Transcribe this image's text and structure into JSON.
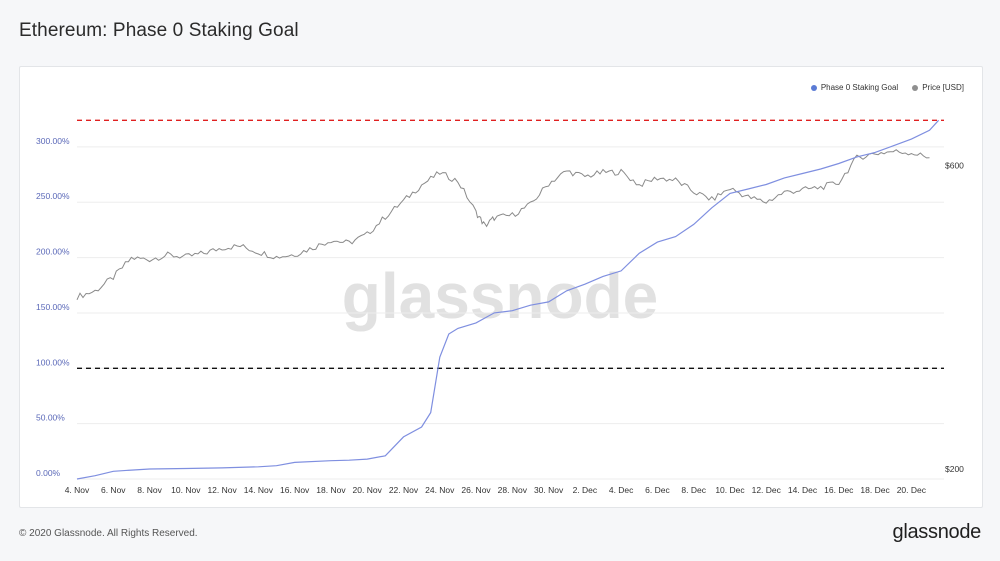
{
  "page": {
    "title": "Ethereum: Phase 0 Staking Goal",
    "copyright": "© 2020 Glassnode. All Rights Reserved.",
    "brand": "glassnode",
    "watermark": "glassnode"
  },
  "colors": {
    "staking": "#7f8fe0",
    "price": "#8a8a8a",
    "legend_staking": "#5b7bd5",
    "legend_price": "#8f8f8f",
    "target_line": "#e02020",
    "base_line": "#111111",
    "left_axis_text": "#5a68b8"
  },
  "chart_data": {
    "type": "line",
    "title": "Ethereum: Phase 0 Staking Goal",
    "x_ticks": [
      "4. Nov",
      "6. Nov",
      "8. Nov",
      "10. Nov",
      "12. Nov",
      "14. Nov",
      "16. Nov",
      "18. Nov",
      "20. Nov",
      "22. Nov",
      "24. Nov",
      "26. Nov",
      "28. Nov",
      "30. Nov",
      "2. Dec",
      "4. Dec",
      "6. Dec",
      "8. Dec",
      "10. Dec",
      "12. Dec",
      "14. Dec",
      "16. Dec",
      "18. Dec",
      "20. Dec"
    ],
    "x_range_days": [
      0,
      47.8
    ],
    "y_left": {
      "ticks": [
        "0.00%",
        "50.00%",
        "100.00%",
        "150.00%",
        "200.00%",
        "250.00%",
        "300.00%"
      ],
      "range": [
        0,
        355
      ]
    },
    "y_right": {
      "ticks": [
        "$200",
        "$600"
      ],
      "scale": "log",
      "range": [
        200,
        830
      ]
    },
    "legend": [
      "Phase 0 Staking Goal",
      "Price [USD]"
    ],
    "legend_position": "top-right",
    "grid": "horizontal",
    "reference_lines": [
      {
        "value": 100,
        "axis": "left",
        "color": "black",
        "style": "dashed"
      },
      {
        "value": 324,
        "axis": "left",
        "color": "red",
        "style": "dashed"
      }
    ],
    "series": [
      {
        "name": "Phase 0 Staking Goal",
        "axis": "left",
        "x": [
          "2020-11-04",
          "2020-11-05",
          "2020-11-06",
          "2020-11-07",
          "2020-11-08",
          "2020-11-10",
          "2020-11-12",
          "2020-11-14",
          "2020-11-15",
          "2020-11-16",
          "2020-11-18",
          "2020-11-19",
          "2020-11-20",
          "2020-11-21",
          "2020-11-22",
          "2020-11-23",
          "2020-11-23 12:00",
          "2020-11-24",
          "2020-11-24 12:00",
          "2020-11-25",
          "2020-11-26",
          "2020-11-27",
          "2020-11-28",
          "2020-11-29",
          "2020-11-30",
          "2020-12-01",
          "2020-12-02",
          "2020-12-03",
          "2020-12-04",
          "2020-12-05",
          "2020-12-06",
          "2020-12-07",
          "2020-12-08",
          "2020-12-09",
          "2020-12-10",
          "2020-12-11",
          "2020-12-12",
          "2020-12-13",
          "2020-12-14",
          "2020-12-15",
          "2020-12-16",
          "2020-12-17",
          "2020-12-18",
          "2020-12-19",
          "2020-12-20",
          "2020-12-21",
          "2020-12-21 12:00"
        ],
        "y": [
          0,
          3,
          7,
          8,
          9,
          9.5,
          10,
          11,
          12,
          15,
          16.5,
          17,
          18,
          21,
          38,
          47,
          60,
          110,
          131,
          136,
          141,
          150,
          152,
          157,
          160,
          170,
          176,
          183,
          188,
          204,
          214,
          219,
          230,
          245,
          258,
          262,
          266,
          272,
          276,
          280,
          285,
          291,
          295,
          301,
          307,
          315,
          324
        ]
      },
      {
        "name": "Price [USD]",
        "axis": "right",
        "x": [
          "2020-11-04",
          "2020-11-05",
          "2020-11-06",
          "2020-11-07",
          "2020-11-08",
          "2020-11-09",
          "2020-11-10",
          "2020-11-11",
          "2020-11-12",
          "2020-11-13",
          "2020-11-14",
          "2020-11-15",
          "2020-11-16",
          "2020-11-17",
          "2020-11-18",
          "2020-11-19",
          "2020-11-20",
          "2020-11-21",
          "2020-11-22",
          "2020-11-23",
          "2020-11-24",
          "2020-11-25",
          "2020-11-26",
          "2020-11-26 12:00",
          "2020-11-27",
          "2020-11-28",
          "2020-11-29",
          "2020-11-30",
          "2020-12-01",
          "2020-12-02",
          "2020-12-03",
          "2020-12-04",
          "2020-12-05",
          "2020-12-06",
          "2020-12-07",
          "2020-12-08",
          "2020-12-09",
          "2020-12-10",
          "2020-12-11",
          "2020-12-12",
          "2020-12-13",
          "2020-12-14",
          "2020-12-15",
          "2020-12-16",
          "2020-12-17",
          "2020-12-18",
          "2020-12-19",
          "2020-12-20",
          "2020-12-21"
        ],
        "y": [
          387,
          395,
          415,
          445,
          443,
          450,
          447,
          453,
          462,
          465,
          455,
          447,
          451,
          462,
          475,
          470,
          485,
          517,
          547,
          580,
          606,
          588,
          525,
          500,
          515,
          520,
          540,
          583,
          610,
          598,
          607,
          608,
          580,
          595,
          590,
          566,
          550,
          573,
          555,
          545,
          565,
          570,
          575,
          585,
          640,
          650,
          655,
          652,
          640
        ]
      }
    ]
  }
}
